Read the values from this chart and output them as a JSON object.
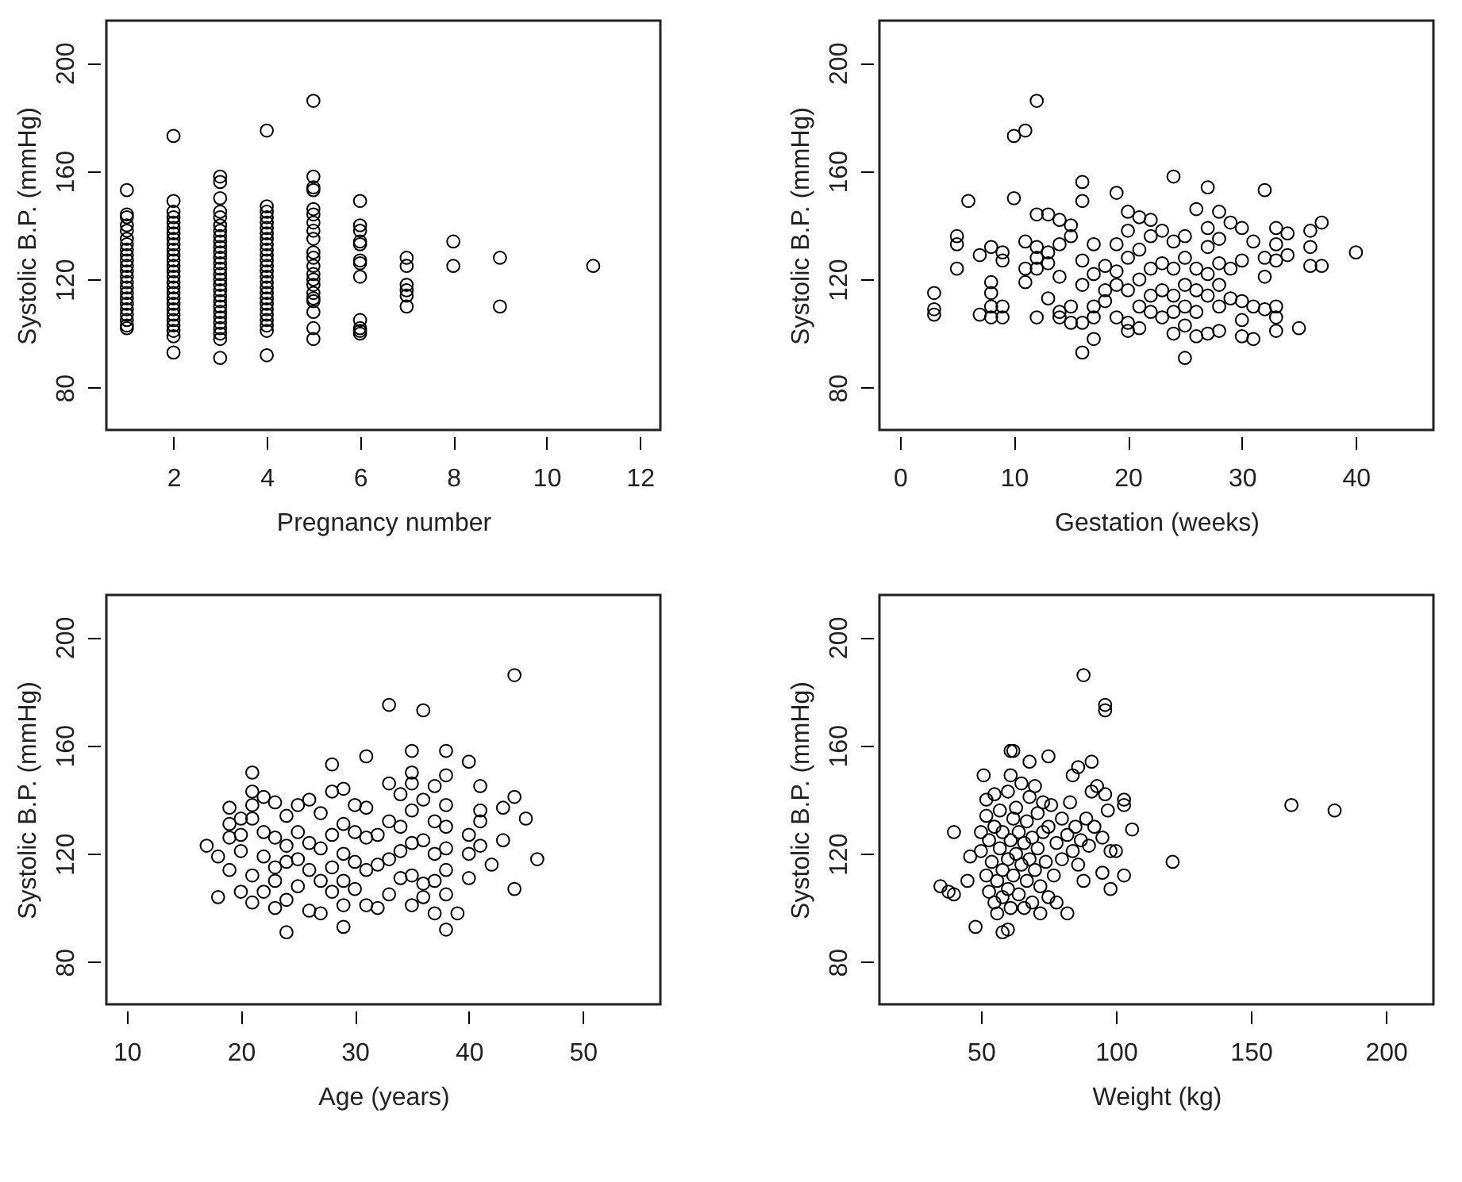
{
  "chart_data": [
    {
      "type": "scatter",
      "xlabel": "Pregnancy number",
      "ylabel": "Systolic B.P. (mmHg)",
      "xlim": [
        0.56,
        12.44
      ],
      "ylim": [
        64.4,
        215.6
      ],
      "xticks": [
        2,
        4,
        6,
        8,
        10,
        12
      ],
      "yticks": [
        80,
        120,
        160,
        200
      ],
      "grid": false,
      "marker": "circle",
      "x": [
        1,
        1,
        1,
        1,
        1,
        1,
        1,
        1,
        1,
        1,
        1,
        1,
        1,
        1,
        1,
        1,
        1,
        1,
        1,
        1,
        1,
        1,
        1,
        2,
        2,
        2,
        2,
        2,
        2,
        2,
        2,
        2,
        2,
        2,
        2,
        2,
        2,
        2,
        2,
        2,
        2,
        2,
        2,
        2,
        2,
        2,
        2,
        2,
        2,
        2,
        3,
        3,
        3,
        3,
        3,
        3,
        3,
        3,
        3,
        3,
        3,
        3,
        3,
        3,
        3,
        3,
        3,
        3,
        3,
        3,
        3,
        3,
        3,
        3,
        3,
        3,
        3,
        3,
        4,
        4,
        4,
        4,
        4,
        4,
        4,
        4,
        4,
        4,
        4,
        4,
        4,
        4,
        4,
        4,
        4,
        4,
        4,
        4,
        4,
        4,
        4,
        4,
        4,
        4,
        5,
        5,
        5,
        5,
        5,
        5,
        5,
        5,
        5,
        5,
        5,
        5,
        5,
        5,
        5,
        5,
        5,
        5,
        5,
        5,
        5,
        6,
        6,
        6,
        6,
        6,
        6,
        6,
        6,
        6,
        6,
        6,
        6,
        7,
        7,
        7,
        7,
        7,
        7,
        8,
        8,
        9,
        9,
        11
      ],
      "values": [
        153,
        144,
        143,
        140,
        138,
        135,
        133,
        131,
        129,
        127,
        125,
        123,
        121,
        119,
        117,
        115,
        113,
        111,
        109,
        107,
        105,
        103,
        102,
        173,
        149,
        145,
        143,
        141,
        139,
        137,
        135,
        133,
        131,
        129,
        127,
        125,
        123,
        121,
        119,
        117,
        115,
        113,
        111,
        109,
        107,
        105,
        103,
        101,
        99,
        93,
        158,
        156,
        150,
        145,
        143,
        140,
        138,
        136,
        134,
        132,
        130,
        128,
        126,
        124,
        122,
        120,
        118,
        116,
        114,
        112,
        110,
        108,
        106,
        104,
        102,
        100,
        98,
        91,
        175,
        147,
        145,
        143,
        141,
        139,
        137,
        135,
        133,
        131,
        129,
        127,
        125,
        123,
        121,
        119,
        117,
        115,
        113,
        111,
        109,
        107,
        105,
        103,
        101,
        92,
        186,
        158,
        154,
        153,
        146,
        144,
        141,
        138,
        135,
        130,
        128,
        125,
        122,
        120,
        118,
        115,
        113,
        112,
        108,
        102,
        98,
        149,
        140,
        138,
        134,
        133,
        127,
        126,
        121,
        105,
        102,
        101,
        100,
        128,
        125,
        118,
        116,
        114,
        110,
        134,
        125,
        128,
        110,
        125
      ]
    },
    {
      "type": "scatter",
      "xlabel": "Gestation (weeks)",
      "ylabel": "Systolic B.P. (mmHg)",
      "xlim": [
        -1.8,
        46.8
      ],
      "ylim": [
        64.4,
        215.6
      ],
      "xticks": [
        0,
        10,
        20,
        30,
        40
      ],
      "yticks": [
        80,
        120,
        160,
        200
      ],
      "grid": false,
      "marker": "circle",
      "x": [
        12,
        10,
        11,
        16,
        6,
        10,
        16,
        19,
        24,
        27,
        32,
        26,
        40,
        37,
        36,
        36,
        37,
        35,
        25,
        16,
        3,
        3,
        3,
        5,
        5,
        5,
        7,
        8,
        9,
        9,
        8,
        8,
        8,
        7,
        8,
        9,
        9,
        11,
        11,
        11,
        12,
        12,
        12,
        12,
        12,
        13,
        13,
        13,
        13,
        14,
        14,
        14,
        14,
        14,
        15,
        15,
        15,
        15,
        16,
        16,
        16,
        17,
        17,
        17,
        17,
        17,
        18,
        18,
        18,
        19,
        19,
        19,
        19,
        20,
        20,
        20,
        20,
        20,
        20,
        21,
        21,
        21,
        21,
        21,
        22,
        22,
        22,
        22,
        22,
        23,
        23,
        23,
        23,
        24,
        24,
        24,
        24,
        24,
        25,
        25,
        25,
        25,
        25,
        26,
        26,
        26,
        26,
        27,
        27,
        27,
        27,
        27,
        28,
        28,
        28,
        28,
        28,
        28,
        29,
        29,
        29,
        30,
        30,
        30,
        30,
        30,
        31,
        31,
        31,
        32,
        32,
        32,
        33,
        33,
        33,
        33,
        33,
        33,
        34,
        34,
        36
      ],
      "values": [
        186,
        173,
        175,
        156,
        149,
        150,
        149,
        152,
        158,
        154,
        153,
        146,
        130,
        141,
        132,
        125,
        125,
        102,
        91,
        93,
        115,
        109,
        107,
        136,
        133,
        124,
        129,
        132,
        130,
        127,
        119,
        115,
        110,
        107,
        106,
        106,
        110,
        134,
        124,
        119,
        144,
        132,
        128,
        124,
        106,
        144,
        130,
        126,
        113,
        142,
        133,
        121,
        108,
        106,
        140,
        136,
        110,
        104,
        127,
        118,
        104,
        133,
        122,
        110,
        106,
        98,
        125,
        116,
        112,
        133,
        123,
        118,
        106,
        145,
        138,
        128,
        116,
        104,
        101,
        143,
        131,
        120,
        110,
        102,
        142,
        136,
        124,
        114,
        108,
        138,
        126,
        116,
        106,
        134,
        124,
        114,
        108,
        100,
        136,
        128,
        118,
        110,
        103,
        124,
        116,
        108,
        99,
        139,
        132,
        122,
        114,
        100,
        145,
        135,
        126,
        118,
        110,
        101,
        141,
        124,
        113,
        139,
        127,
        112,
        105,
        99,
        134,
        110,
        98,
        128,
        121,
        109,
        139,
        133,
        127,
        110,
        106,
        101,
        137,
        129,
        138
      ]
    },
    {
      "type": "scatter",
      "xlabel": "Age (years)",
      "ylabel": "Systolic B.P. (mmHg)",
      "xlim": [
        8.2,
        56.8
      ],
      "ylim": [
        64.4,
        215.6
      ],
      "xticks": [
        10,
        20,
        30,
        40,
        50
      ],
      "yticks": [
        80,
        120,
        160,
        200
      ],
      "grid": false,
      "marker": "circle",
      "x": [
        44,
        33,
        36,
        31,
        35,
        38,
        40,
        28,
        21,
        38,
        35,
        41,
        44,
        43,
        45,
        43,
        46,
        44,
        42,
        39,
        38,
        37,
        29,
        24,
        17,
        18,
        18,
        19,
        19,
        19,
        19,
        20,
        20,
        20,
        20,
        21,
        21,
        21,
        21,
        21,
        22,
        22,
        22,
        22,
        23,
        23,
        23,
        23,
        23,
        24,
        24,
        24,
        24,
        25,
        25,
        25,
        25,
        26,
        26,
        26,
        26,
        27,
        27,
        27,
        27,
        28,
        28,
        28,
        28,
        29,
        29,
        29,
        29,
        29,
        30,
        30,
        30,
        30,
        31,
        31,
        31,
        31,
        32,
        32,
        32,
        33,
        33,
        33,
        33,
        34,
        34,
        34,
        34,
        35,
        35,
        35,
        35,
        35,
        36,
        36,
        36,
        36,
        37,
        37,
        37,
        37,
        38,
        38,
        38,
        38,
        38,
        40,
        40,
        40,
        41,
        41,
        41
      ],
      "values": [
        186,
        175,
        173,
        156,
        158,
        158,
        154,
        153,
        150,
        149,
        150,
        145,
        141,
        137,
        133,
        125,
        118,
        107,
        116,
        98,
        92,
        98,
        93,
        91,
        123,
        119,
        104,
        137,
        131,
        126,
        114,
        133,
        127,
        121,
        106,
        143,
        138,
        133,
        112,
        102,
        141,
        128,
        119,
        106,
        139,
        126,
        115,
        110,
        100,
        134,
        123,
        117,
        103,
        138,
        128,
        118,
        108,
        140,
        124,
        114,
        99,
        135,
        122,
        110,
        98,
        143,
        127,
        115,
        106,
        144,
        131,
        120,
        110,
        101,
        138,
        128,
        117,
        107,
        137,
        126,
        114,
        101,
        127,
        116,
        100,
        146,
        132,
        118,
        105,
        142,
        130,
        121,
        111,
        146,
        136,
        124,
        112,
        101,
        140,
        125,
        109,
        104,
        145,
        132,
        120,
        110,
        138,
        130,
        122,
        114,
        105,
        127,
        120,
        111,
        136,
        132,
        123
      ]
    },
    {
      "type": "scatter",
      "xlabel": "Weight (kg)",
      "ylabel": "Systolic B.P. (mmHg)",
      "xlim": [
        12.4,
        217.6
      ],
      "ylim": [
        64.4,
        215.6
      ],
      "xticks": [
        50,
        100,
        150,
        200
      ],
      "yticks": [
        80,
        120,
        160,
        200
      ],
      "grid": false,
      "marker": "circle",
      "x": [
        88,
        96,
        96,
        165,
        181,
        121,
        61,
        62,
        75,
        68,
        91,
        86,
        51,
        61,
        84,
        40,
        35,
        38,
        40,
        48,
        58,
        60,
        82,
        98,
        103,
        106,
        103,
        103,
        100,
        95,
        88,
        93,
        91,
        96,
        45,
        46,
        50,
        50,
        52,
        52,
        52,
        53,
        53,
        54,
        55,
        55,
        55,
        56,
        56,
        57,
        57,
        58,
        58,
        58,
        60,
        60,
        60,
        61,
        61,
        62,
        62,
        63,
        63,
        64,
        64,
        65,
        65,
        66,
        66,
        67,
        67,
        68,
        68,
        69,
        69,
        70,
        70,
        71,
        71,
        72,
        72,
        73,
        73,
        74,
        75,
        75,
        76,
        77,
        78,
        78,
        80,
        80,
        82,
        83,
        84,
        85,
        86,
        87,
        89,
        90,
        92,
        95,
        97,
        98
      ],
      "values": [
        186,
        175,
        173,
        138,
        136,
        117,
        158,
        158,
        156,
        154,
        154,
        152,
        149,
        149,
        149,
        128,
        108,
        106,
        105,
        93,
        91,
        92,
        98,
        107,
        112,
        129,
        140,
        138,
        121,
        113,
        110,
        145,
        143,
        142,
        110,
        119,
        121,
        128,
        140,
        134,
        112,
        106,
        125,
        117,
        102,
        130,
        142,
        98,
        110,
        122,
        136,
        104,
        114,
        128,
        118,
        107,
        143,
        125,
        100,
        133,
        112,
        120,
        137,
        105,
        128,
        116,
        146,
        100,
        124,
        132,
        110,
        141,
        118,
        126,
        102,
        145,
        114,
        122,
        135,
        98,
        108,
        128,
        139,
        117,
        104,
        130,
        138,
        112,
        124,
        102,
        133,
        118,
        127,
        139,
        121,
        130,
        116,
        125,
        133,
        123,
        130,
        126,
        136,
        121
      ]
    }
  ]
}
